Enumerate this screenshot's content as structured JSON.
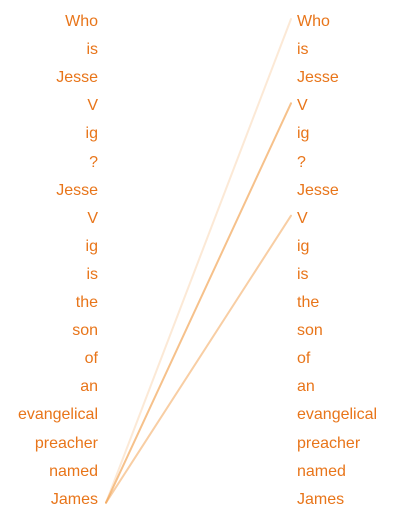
{
  "colors": {
    "token_text": "#e8751a",
    "attention_line": "#f2a65a"
  },
  "left_tokens": [
    "Who",
    "is",
    "Jesse",
    "V",
    "ig",
    "?",
    "Jesse",
    "V",
    "ig",
    "is",
    "the",
    "son",
    "of",
    "an",
    "evangelical",
    "preacher",
    "named",
    "James"
  ],
  "right_tokens": [
    "Who",
    "is",
    "Jesse",
    "V",
    "ig",
    "?",
    "Jesse",
    "V",
    "ig",
    "is",
    "the",
    "son",
    "of",
    "an",
    "evangelical",
    "preacher",
    "named",
    "James"
  ],
  "attention_links": [
    {
      "from": 17,
      "to": 0,
      "weight": 0.25
    },
    {
      "from": 17,
      "to": 3,
      "weight": 0.7
    },
    {
      "from": 17,
      "to": 7,
      "weight": 0.55
    }
  ]
}
